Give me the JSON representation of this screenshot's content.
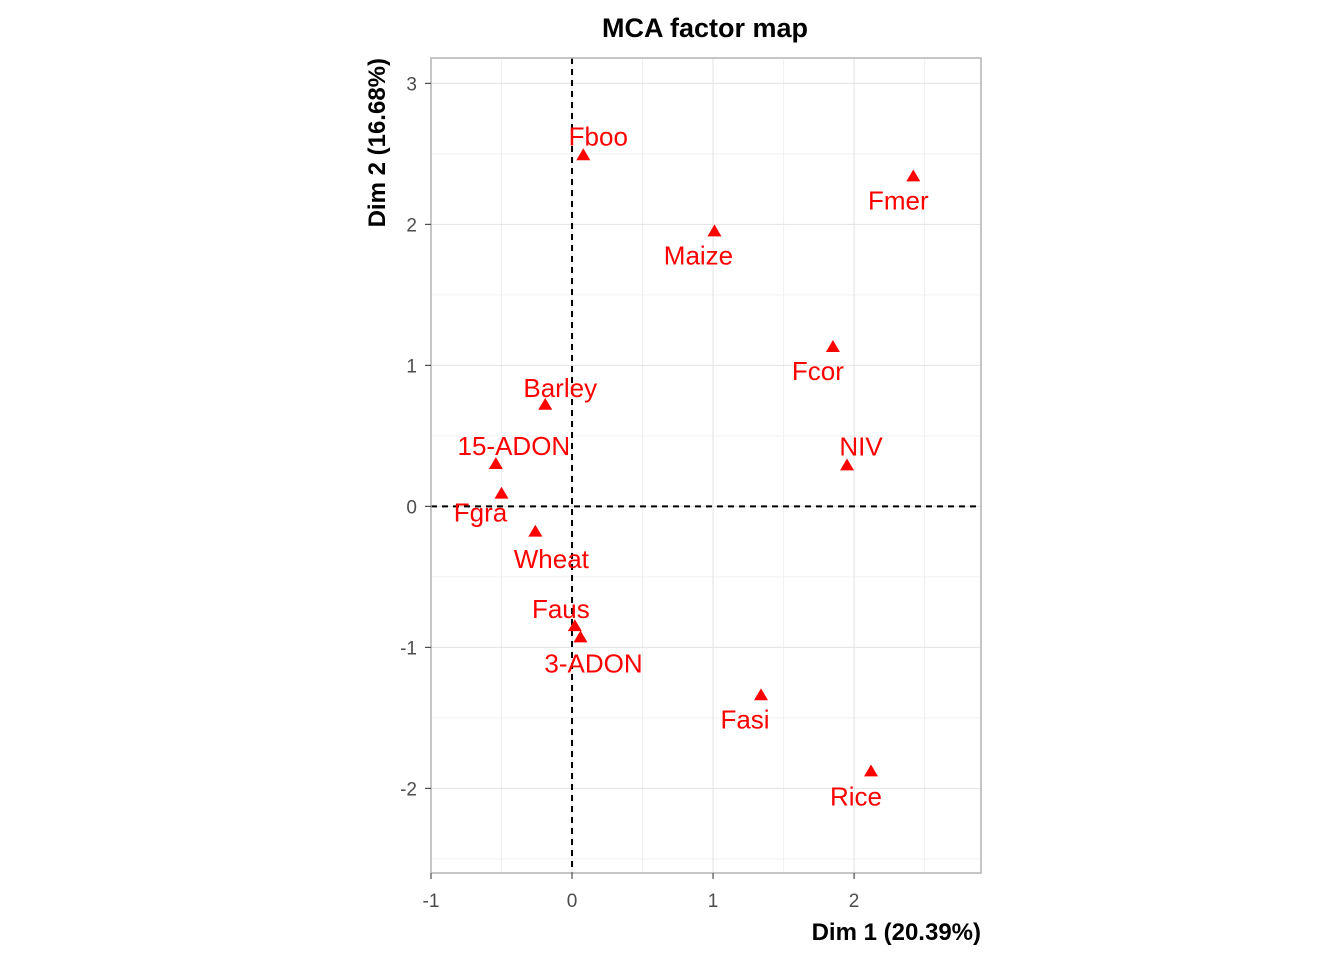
{
  "chart_data": {
    "type": "scatter",
    "title": "MCA factor map",
    "xlabel": "Dim 1 (20.39%)",
    "ylabel": "Dim 2 (16.68%)",
    "xlim": [
      -1,
      2.9
    ],
    "ylim": [
      -2.6,
      3.18
    ],
    "x_ticks": [
      -1,
      0,
      1,
      2
    ],
    "y_ticks": [
      -2,
      -1,
      0,
      1,
      2,
      3
    ],
    "x_tick_labels": [
      "-1",
      "0",
      "1",
      "2"
    ],
    "y_tick_labels": [
      "-2",
      "-1",
      "0",
      "1",
      "2",
      "3"
    ],
    "grid": true,
    "reference_lines": {
      "x": 0,
      "y": 0,
      "style": "dashed"
    },
    "marker": "triangle",
    "point_color": "#ff0000",
    "points": [
      {
        "label": "Fboo",
        "x": 0.08,
        "y": 2.49
      },
      {
        "label": "Fmer",
        "x": 2.42,
        "y": 2.34
      },
      {
        "label": "Maize",
        "x": 1.01,
        "y": 1.95
      },
      {
        "label": "Fcor",
        "x": 1.85,
        "y": 1.13
      },
      {
        "label": "Barley",
        "x": -0.19,
        "y": 0.72
      },
      {
        "label": "15-ADON",
        "x": -0.54,
        "y": 0.3
      },
      {
        "label": "NIV",
        "x": 1.95,
        "y": 0.29
      },
      {
        "label": "Fgra",
        "x": -0.5,
        "y": 0.09
      },
      {
        "label": "Wheat",
        "x": -0.26,
        "y": -0.18
      },
      {
        "label": "Faus",
        "x": 0.02,
        "y": -0.85
      },
      {
        "label": "3-ADON",
        "x": 0.06,
        "y": -0.93
      },
      {
        "label": "Fasi",
        "x": 1.34,
        "y": -1.34
      },
      {
        "label": "Rice",
        "x": 2.12,
        "y": -1.88
      }
    ]
  }
}
